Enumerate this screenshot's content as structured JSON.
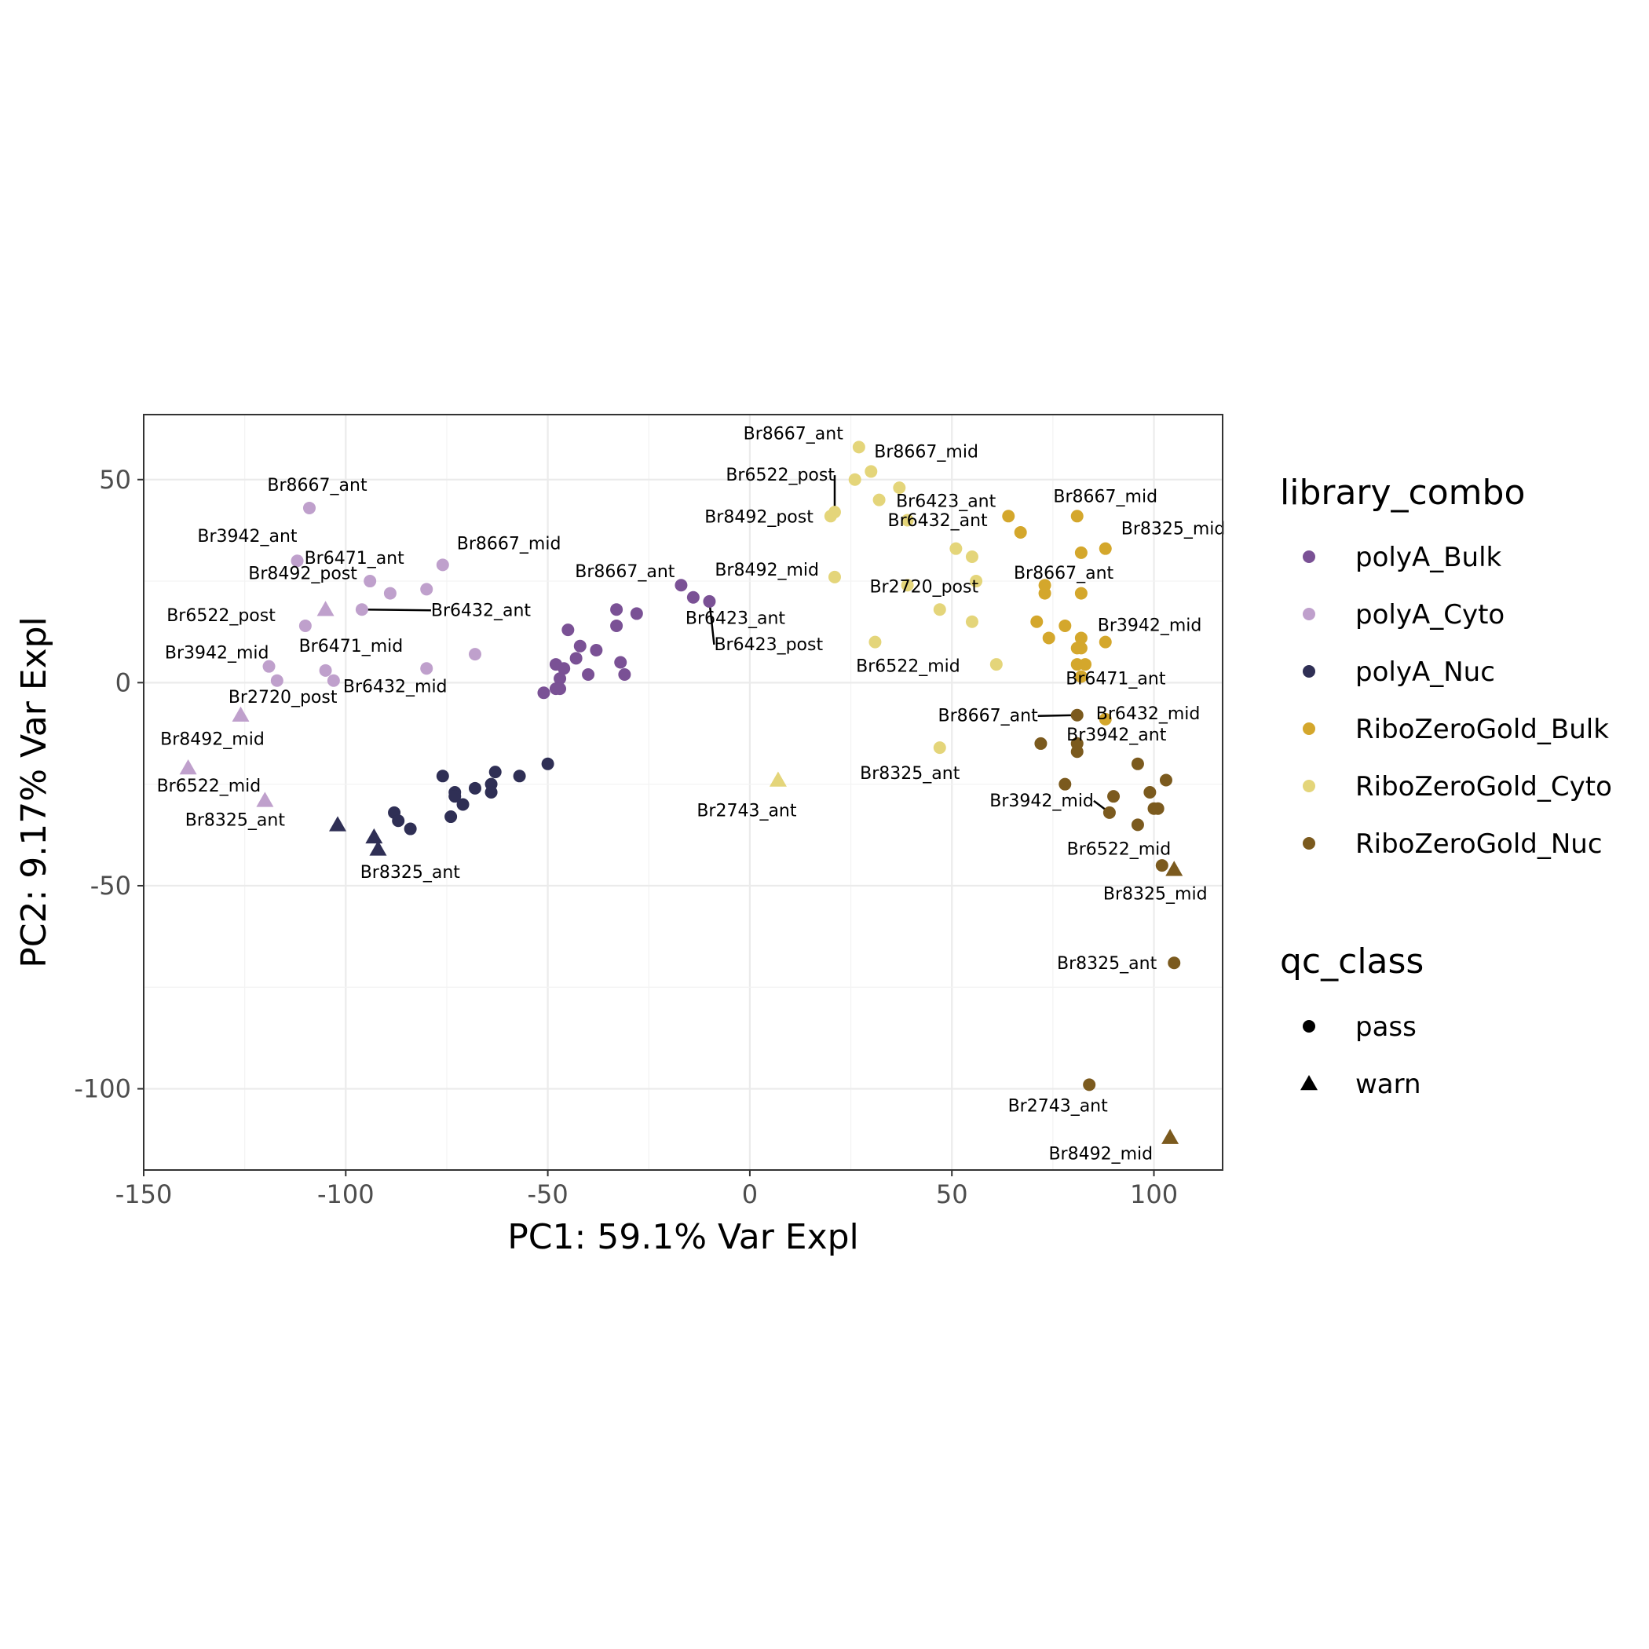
{
  "chart_data": {
    "type": "scatter",
    "xlabel": "PC1: 59.1% Var Expl",
    "ylabel": "PC2: 9.17% Var Expl",
    "xlim": [
      -150,
      117
    ],
    "ylim": [
      -120,
      66
    ],
    "xticks": [
      -150,
      -100,
      -50,
      0,
      50,
      100
    ],
    "yticks": [
      50,
      0,
      -50,
      -100
    ],
    "xtick_labels": [
      "-150",
      "-100",
      "-50",
      "0",
      "50",
      "100"
    ],
    "ytick_labels": [
      "50",
      "0",
      "-50",
      "-100"
    ],
    "grid": true,
    "legend_position": "right",
    "legends": [
      {
        "title": "library_combo",
        "items": [
          {
            "label": "polyA_Bulk",
            "color": "#7a5195"
          },
          {
            "label": "polyA_Cyto",
            "color": "#bfa0cc"
          },
          {
            "label": "polyA_Nuc",
            "color": "#2f2f55"
          },
          {
            "label": "RiboZeroGold_Bulk",
            "color": "#d4a72c"
          },
          {
            "label": "RiboZeroGold_Cyto",
            "color": "#e4d57a"
          },
          {
            "label": "RiboZeroGold_Nuc",
            "color": "#7b5a1e"
          }
        ]
      },
      {
        "title": "qc_class",
        "items": [
          {
            "label": "pass",
            "shape": "circle"
          },
          {
            "label": "warn",
            "shape": "triangle"
          }
        ]
      }
    ],
    "series": [
      {
        "name": "polyA_Bulk",
        "color": "#7a5195",
        "points": [
          {
            "x": -17,
            "y": 24,
            "qc": "pass",
            "label": "Br8667_ant"
          },
          {
            "x": -14,
            "y": 21,
            "qc": "pass",
            "label": "Br6423_ant"
          },
          {
            "x": -10,
            "y": 20,
            "qc": "pass",
            "label": "Br6423_post"
          },
          {
            "x": -33,
            "y": 18,
            "qc": "pass"
          },
          {
            "x": -28,
            "y": 17,
            "qc": "pass"
          },
          {
            "x": -33,
            "y": 14,
            "qc": "pass"
          },
          {
            "x": -45,
            "y": 13,
            "qc": "pass"
          },
          {
            "x": -42,
            "y": 9,
            "qc": "pass"
          },
          {
            "x": -38,
            "y": 8,
            "qc": "pass"
          },
          {
            "x": -43,
            "y": 6,
            "qc": "pass"
          },
          {
            "x": -32,
            "y": 5,
            "qc": "pass"
          },
          {
            "x": -48,
            "y": 4.5,
            "qc": "pass"
          },
          {
            "x": -46,
            "y": 3.5,
            "qc": "pass"
          },
          {
            "x": -40,
            "y": 2,
            "qc": "pass"
          },
          {
            "x": -31,
            "y": 2,
            "qc": "pass"
          },
          {
            "x": -47,
            "y": 1,
            "qc": "pass"
          },
          {
            "x": -48,
            "y": -1.5,
            "qc": "pass"
          },
          {
            "x": -47,
            "y": -1.5,
            "qc": "pass"
          },
          {
            "x": -51,
            "y": -2.5,
            "qc": "pass"
          }
        ]
      },
      {
        "name": "polyA_Cyto",
        "color": "#bfa0cc",
        "points": [
          {
            "x": -109,
            "y": 43,
            "qc": "pass",
            "label": "Br8667_ant"
          },
          {
            "x": -112,
            "y": 30,
            "qc": "pass",
            "label": "Br3942_ant"
          },
          {
            "x": -76,
            "y": 29,
            "qc": "pass",
            "label": "Br8667_mid"
          },
          {
            "x": -94,
            "y": 25,
            "qc": "pass",
            "label": "Br6471_ant"
          },
          {
            "x": -89,
            "y": 22,
            "qc": "pass",
            "label": "Br8492_post"
          },
          {
            "x": -80,
            "y": 23,
            "qc": "pass"
          },
          {
            "x": -96,
            "y": 18,
            "qc": "pass",
            "label": "Br6432_ant"
          },
          {
            "x": -110,
            "y": 14,
            "qc": "pass",
            "label": "Br6522_post"
          },
          {
            "x": -68,
            "y": 7,
            "qc": "pass"
          },
          {
            "x": -119,
            "y": 4,
            "qc": "pass",
            "label": "Br3942_mid"
          },
          {
            "x": -105,
            "y": 3,
            "qc": "pass",
            "label": "Br6471_mid"
          },
          {
            "x": -80,
            "y": 3.5,
            "qc": "pass",
            "label": "Br6432_mid"
          },
          {
            "x": -117,
            "y": 0.5,
            "qc": "pass",
            "label": "Br2720_post"
          },
          {
            "x": -103,
            "y": 0.5,
            "qc": "pass"
          },
          {
            "x": -105,
            "y": 18,
            "qc": "warn"
          },
          {
            "x": -126,
            "y": -8,
            "qc": "warn",
            "label": "Br8492_mid"
          },
          {
            "x": -139,
            "y": -21,
            "qc": "warn",
            "label": "Br6522_mid"
          },
          {
            "x": -120,
            "y": -29,
            "qc": "warn",
            "label": "Br8325_ant"
          }
        ]
      },
      {
        "name": "polyA_Nuc",
        "color": "#2f2f55",
        "points": [
          {
            "x": -50,
            "y": -20,
            "qc": "pass"
          },
          {
            "x": -63,
            "y": -22,
            "qc": "pass"
          },
          {
            "x": -57,
            "y": -23,
            "qc": "pass"
          },
          {
            "x": -76,
            "y": -23,
            "qc": "pass"
          },
          {
            "x": -64,
            "y": -25,
            "qc": "pass"
          },
          {
            "x": -68,
            "y": -26,
            "qc": "pass"
          },
          {
            "x": -73,
            "y": -27,
            "qc": "pass"
          },
          {
            "x": -64,
            "y": -27,
            "qc": "pass"
          },
          {
            "x": -73,
            "y": -28,
            "qc": "pass"
          },
          {
            "x": -71,
            "y": -30,
            "qc": "pass"
          },
          {
            "x": -88,
            "y": -32,
            "qc": "pass"
          },
          {
            "x": -74,
            "y": -33,
            "qc": "pass"
          },
          {
            "x": -87,
            "y": -34,
            "qc": "pass"
          },
          {
            "x": -84,
            "y": -36,
            "qc": "pass"
          },
          {
            "x": -102,
            "y": -35,
            "qc": "warn"
          },
          {
            "x": -93,
            "y": -38,
            "qc": "warn",
            "label": "Br8325_ant"
          },
          {
            "x": -92,
            "y": -41,
            "qc": "warn"
          }
        ]
      },
      {
        "name": "RiboZeroGold_Bulk",
        "color": "#d4a72c",
        "points": [
          {
            "x": 64,
            "y": 41,
            "qc": "pass",
            "label": "Br6423_ant"
          },
          {
            "x": 81,
            "y": 41,
            "qc": "pass",
            "label": "Br8667_mid"
          },
          {
            "x": 67,
            "y": 37,
            "qc": "pass",
            "label": "Br6432_ant"
          },
          {
            "x": 88,
            "y": 33,
            "qc": "pass",
            "label": "Br8325_mid"
          },
          {
            "x": 82,
            "y": 32,
            "qc": "pass"
          },
          {
            "x": 73,
            "y": 24,
            "qc": "pass",
            "label": "Br8667_ant"
          },
          {
            "x": 73,
            "y": 22,
            "qc": "pass"
          },
          {
            "x": 82,
            "y": 22,
            "qc": "pass"
          },
          {
            "x": 71,
            "y": 15,
            "qc": "pass"
          },
          {
            "x": 78,
            "y": 14,
            "qc": "pass"
          },
          {
            "x": 74,
            "y": 11,
            "qc": "pass"
          },
          {
            "x": 82,
            "y": 11,
            "qc": "pass"
          },
          {
            "x": 88,
            "y": 10,
            "qc": "pass",
            "label": "Br3942_mid"
          },
          {
            "x": 81,
            "y": 8.5,
            "qc": "pass"
          },
          {
            "x": 82,
            "y": 8.5,
            "qc": "pass"
          },
          {
            "x": 81,
            "y": 4.5,
            "qc": "pass"
          },
          {
            "x": 83,
            "y": 4.5,
            "qc": "pass"
          },
          {
            "x": 82,
            "y": 1.5,
            "qc": "pass",
            "label": "Br6471_ant"
          },
          {
            "x": 88,
            "y": -9,
            "qc": "pass",
            "label": "Br6432_mid"
          }
        ]
      },
      {
        "name": "RiboZeroGold_Cyto",
        "color": "#e4d57a",
        "points": [
          {
            "x": 27,
            "y": 58,
            "qc": "pass",
            "label": "Br8667_ant"
          },
          {
            "x": 30,
            "y": 52,
            "qc": "pass",
            "label": "Br8667_mid"
          },
          {
            "x": 26,
            "y": 50,
            "qc": "pass"
          },
          {
            "x": 37,
            "y": 48,
            "qc": "pass"
          },
          {
            "x": 32,
            "y": 45,
            "qc": "pass"
          },
          {
            "x": 21,
            "y": 42,
            "qc": "pass",
            "label": "Br6522_post"
          },
          {
            "x": 20,
            "y": 41,
            "qc": "pass",
            "label": "Br8492_post"
          },
          {
            "x": 39,
            "y": 40,
            "qc": "pass"
          },
          {
            "x": 51,
            "y": 33,
            "qc": "pass"
          },
          {
            "x": 55,
            "y": 31,
            "qc": "pass"
          },
          {
            "x": 21,
            "y": 26,
            "qc": "pass",
            "label": "Br8492_mid"
          },
          {
            "x": 56,
            "y": 25,
            "qc": "pass"
          },
          {
            "x": 39,
            "y": 24,
            "qc": "pass"
          },
          {
            "x": 47,
            "y": 18,
            "qc": "pass",
            "label": "Br2720_post"
          },
          {
            "x": 55,
            "y": 15,
            "qc": "pass"
          },
          {
            "x": 31,
            "y": 10,
            "qc": "pass",
            "label": "Br6522_mid"
          },
          {
            "x": 61,
            "y": 4.5,
            "qc": "pass"
          },
          {
            "x": 47,
            "y": -16,
            "qc": "pass",
            "label": "Br8325_ant"
          },
          {
            "x": 7,
            "y": -24,
            "qc": "warn",
            "label": "Br2743_ant"
          }
        ]
      },
      {
        "name": "RiboZeroGold_Nuc",
        "color": "#7b5a1e",
        "points": [
          {
            "x": 81,
            "y": -8,
            "qc": "pass",
            "label": "Br8667_ant"
          },
          {
            "x": 72,
            "y": -15,
            "qc": "pass"
          },
          {
            "x": 81,
            "y": -15,
            "qc": "pass",
            "label": "Br3942_ant"
          },
          {
            "x": 81,
            "y": -17,
            "qc": "pass"
          },
          {
            "x": 96,
            "y": -20,
            "qc": "pass"
          },
          {
            "x": 78,
            "y": -25,
            "qc": "pass"
          },
          {
            "x": 103,
            "y": -24,
            "qc": "pass"
          },
          {
            "x": 99,
            "y": -27,
            "qc": "pass"
          },
          {
            "x": 90,
            "y": -28,
            "qc": "pass"
          },
          {
            "x": 101,
            "y": -31,
            "qc": "pass"
          },
          {
            "x": 100,
            "y": -31,
            "qc": "pass"
          },
          {
            "x": 89,
            "y": -32,
            "qc": "pass",
            "label": "Br3942_mid"
          },
          {
            "x": 96,
            "y": -35,
            "qc": "pass",
            "label": "Br6522_mid"
          },
          {
            "x": 102,
            "y": -45,
            "qc": "pass"
          },
          {
            "x": 105,
            "y": -46,
            "qc": "warn",
            "label": "Br8325_mid"
          },
          {
            "x": 105,
            "y": -69,
            "qc": "pass",
            "label": "Br8325_ant"
          },
          {
            "x": 84,
            "y": -99,
            "qc": "pass",
            "label": "Br2743_ant"
          },
          {
            "x": 104,
            "y": -112,
            "qc": "warn",
            "label": "Br8492_mid"
          }
        ]
      }
    ]
  }
}
